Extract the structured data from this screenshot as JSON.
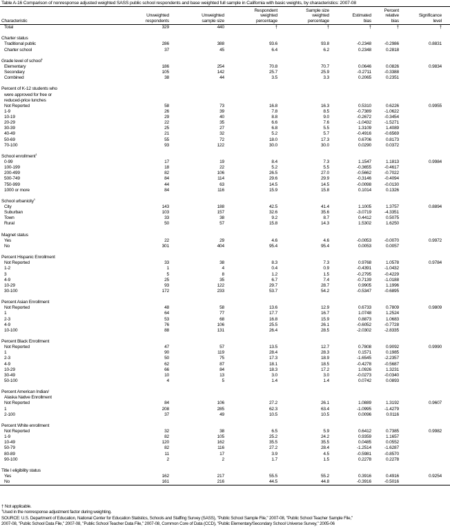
{
  "title": "Table A-16 Comparison of nonresponse adjusted weighted SASS public school respondents and base weighted full sample in California with basic weights, by characteristics: 2007-08",
  "headers": [
    "Characteristic",
    "Unweighted\nrespondents",
    "Unweighted\nsample size",
    "Respondent\nweighted\npercentage",
    "Sample size\nweighted\npercentage",
    "Estimated\nbias",
    "Percent\nrelative\nbias",
    "Significance\nlevel"
  ],
  "total": [
    "Total",
    "329",
    "440",
    "†",
    "†",
    "†",
    "†",
    "†"
  ],
  "sections": [
    {
      "label": "Charter status",
      "sup": "",
      "rows": [
        [
          "Traditional public",
          "286",
          "388",
          "93.6",
          "93.8",
          "-0.2348",
          "-0.2986",
          "0.8831"
        ],
        [
          "Charter school",
          "37",
          "45",
          "6.4",
          "6.2",
          "0.2348",
          "0.2818",
          ""
        ]
      ]
    },
    {
      "label": "Grade level of school",
      "sup": "1",
      "rows": [
        [
          "Elementary",
          "186",
          "254",
          "70.8",
          "70.7",
          "0.0646",
          "0.0826",
          "0.9834"
        ],
        [
          "Secondary",
          "105",
          "142",
          "25.7",
          "25.9",
          "-0.2711",
          "-0.3388",
          ""
        ],
        [
          "Combined",
          "38",
          "44",
          "3.5",
          "3.3",
          "0.2065",
          "0.2351",
          ""
        ]
      ]
    },
    {
      "label": "Percent of K-12 students who",
      "label_lines": [
        "were approved for free or",
        "reduced-price lunches"
      ],
      "sup": "",
      "rows": [
        [
          "Not Reported",
          "58",
          "73",
          "16.8",
          "16.3",
          "0.5310",
          "0.6226",
          "0.9955"
        ],
        [
          "1-9",
          "26",
          "39",
          "7.8",
          "8.5",
          "-0.7389",
          "-1.0622",
          ""
        ],
        [
          "10-19",
          "29",
          "40",
          "8.8",
          "9.0",
          "-0.2672",
          "-0.3454",
          ""
        ],
        [
          "20-29",
          "22",
          "35",
          "6.6",
          "7.6",
          "-1.0432",
          "-1.5271",
          ""
        ],
        [
          "30-39",
          "25",
          "27",
          "6.8",
          "5.5",
          "1.3109",
          "1.4089",
          ""
        ],
        [
          "40-49",
          "21",
          "32",
          "5.2",
          "5.7",
          "-0.4916",
          "-0.6569",
          ""
        ],
        [
          "50-69",
          "55",
          "72",
          "18.0",
          "17.3",
          "0.6706",
          "0.8173",
          ""
        ],
        [
          "70-100",
          "93",
          "122",
          "30.0",
          "30.0",
          "0.0290",
          "0.0372",
          ""
        ]
      ]
    },
    {
      "label": "School enrollment",
      "sup": "1",
      "rows": [
        [
          "0-99",
          "17",
          "19",
          "8.4",
          "7.3",
          "1.1547",
          "1.1813",
          "0.9984"
        ],
        [
          "100-199",
          "18",
          "22",
          "5.2",
          "5.5",
          "-0.3655",
          "-0.4617",
          ""
        ],
        [
          "200-499",
          "82",
          "106",
          "26.5",
          "27.0",
          "-0.5662",
          "-0.7022",
          ""
        ],
        [
          "500-749",
          "84",
          "114",
          "29.6",
          "29.9",
          "-0.3146",
          "-0.4094",
          ""
        ],
        [
          "750-999",
          "44",
          "63",
          "14.5",
          "14.5",
          "-0.0098",
          "-0.0130",
          ""
        ],
        [
          "1000 or more",
          "84",
          "116",
          "15.9",
          "15.8",
          "0.1014",
          "0.1326",
          ""
        ]
      ]
    },
    {
      "label": "School urbanicity",
      "sup": "1",
      "rows": [
        [
          "City",
          "143",
          "188",
          "42.5",
          "41.4",
          "1.1005",
          "1.3757",
          "0.8894"
        ],
        [
          "Suburban",
          "103",
          "157",
          "32.6",
          "35.6",
          "-3.0719",
          "-4.3351",
          ""
        ],
        [
          "Town",
          "33",
          "38",
          "9.2",
          "8.7",
          "0.4412",
          "0.5075",
          ""
        ],
        [
          "Rural",
          "50",
          "57",
          "15.8",
          "14.3",
          "1.5302",
          "1.6250",
          ""
        ]
      ]
    },
    {
      "label": "Magnet status",
      "sup": "",
      "rows": [
        [
          "Yes",
          "22",
          "29",
          "4.6",
          "4.6",
          "-0.0053",
          "-0.0070",
          "0.9972"
        ],
        [
          "No",
          "301",
          "404",
          "95.4",
          "95.4",
          "0.0053",
          "0.0057",
          ""
        ]
      ]
    },
    {
      "label": "Percent Hispanic Enrollment",
      "sup": "",
      "rows": [
        [
          "Not Reported",
          "33",
          "38",
          "8.3",
          "7.3",
          "0.9768",
          "1.0578",
          "0.9784"
        ],
        [
          "1-2",
          "1",
          "4",
          "0.4",
          "0.9",
          "-0.4391",
          "-1.0432",
          ""
        ],
        [
          "3",
          "5",
          "8",
          "1.2",
          "1.5",
          "-0.2795",
          "-0.4229",
          ""
        ],
        [
          "4-9",
          "25",
          "35",
          "6.7",
          "7.4",
          "-0.7139",
          "-1.0188",
          ""
        ],
        [
          "10-29",
          "93",
          "122",
          "29.7",
          "28.7",
          "0.9905",
          "1.1996",
          ""
        ],
        [
          "30-100",
          "172",
          "233",
          "53.7",
          "54.2",
          "-0.5347",
          "-0.6895",
          ""
        ]
      ]
    },
    {
      "label": "Percent Asian Enrollment",
      "sup": "",
      "rows": [
        [
          "Not Reported",
          "48",
          "58",
          "13.6",
          "12.9",
          "0.6733",
          "0.7809",
          "0.9809"
        ],
        [
          "1",
          "64",
          "77",
          "17.7",
          "16.7",
          "1.0748",
          "1.2524",
          ""
        ],
        [
          "2-3",
          "53",
          "68",
          "16.8",
          "15.9",
          "0.8873",
          "1.0683",
          ""
        ],
        [
          "4-9",
          "76",
          "106",
          "25.5",
          "26.1",
          "-0.6052",
          "-0.7728",
          ""
        ],
        [
          "10-100",
          "88",
          "131",
          "26.4",
          "28.5",
          "-2.0302",
          "-2.8335",
          ""
        ]
      ]
    },
    {
      "label": "Percent Black Enrollment",
      "sup": "",
      "rows": [
        [
          "Not Reported",
          "47",
          "57",
          "13.5",
          "12.7",
          "0.7808",
          "0.9092",
          "0.9990"
        ],
        [
          "1",
          "90",
          "119",
          "28.4",
          "28.3",
          "0.1571",
          "0.1985",
          ""
        ],
        [
          "2-3",
          "50",
          "75",
          "17.3",
          "18.9",
          "-1.6545",
          "-2.2357",
          ""
        ],
        [
          "4-9",
          "62",
          "87",
          "18.1",
          "18.5",
          "-0.4278",
          "-0.5687",
          ""
        ],
        [
          "10-29",
          "66",
          "84",
          "18.3",
          "17.2",
          "1.0926",
          "1.3231",
          ""
        ],
        [
          "30-49",
          "10",
          "13",
          "3.0",
          "3.0",
          "-0.0273",
          "-0.0340",
          ""
        ],
        [
          "50-100",
          "4",
          "5",
          "1.4",
          "1.4",
          "0.0742",
          "0.0893",
          ""
        ]
      ]
    },
    {
      "label": "Percent American Indian/",
      "label_lines": [
        "Alaska Native Enrollment"
      ],
      "sup": "",
      "rows": [
        [
          "Not Reported",
          "84",
          "106",
          "27.2",
          "26.1",
          "1.0889",
          "1.3192",
          "0.9607"
        ],
        [
          "1",
          "208",
          "285",
          "62.3",
          "63.4",
          "-1.0995",
          "-1.4279",
          ""
        ],
        [
          "2-100",
          "37",
          "49",
          "10.5",
          "10.5",
          "0.0096",
          "0.0116",
          ""
        ]
      ]
    },
    {
      "label": "Percent White enrollment",
      "sup": "",
      "rows": [
        [
          "Not Reported",
          "32",
          "38",
          "6.5",
          "5.9",
          "0.6412",
          "0.7385",
          "0.9982"
        ],
        [
          "1-9",
          "82",
          "105",
          "25.2",
          "24.2",
          "0.9359",
          "1.1657",
          ""
        ],
        [
          "10-49",
          "120",
          "162",
          "35.5",
          "35.5",
          "0.0485",
          "0.0552",
          ""
        ],
        [
          "50-79",
          "82",
          "116",
          "27.2",
          "28.4",
          "-1.2514",
          "-1.6287",
          ""
        ],
        [
          "80-89",
          "11",
          "17",
          "3.9",
          "4.5",
          "-0.5981",
          "-0.8570",
          ""
        ],
        [
          "90-100",
          "2",
          "2",
          "1.7",
          "1.5",
          "0.2278",
          "0.2278",
          ""
        ]
      ]
    },
    {
      "label": "Title I eligibility status",
      "sup": "",
      "rows": [
        [
          "Yes",
          "162",
          "217",
          "55.5",
          "55.2",
          "0.3916",
          "0.4916",
          "0.9254"
        ],
        [
          "No",
          "161",
          "216",
          "44.5",
          "44.8",
          "-0.3916",
          "-0.5016",
          ""
        ]
      ]
    }
  ],
  "notes": {
    "na": "† Not applicable.",
    "fn1_mark": "1",
    "fn1": "Used in the nonresponse adjustment factor during weighting.",
    "source1": "SOURCE: U.S. Department of Education, National Center for Education Statistics, Schools and Staffing Survey (SASS), \"Public School Sample File,\" 2007-08, \"Public School Teacher Sample File,\"",
    "source2": "2007-08, \"Public School Data File,\" 2007-08, \"Public School Teacher Data File,\" 2007-08, Common Core of Data (CCD), \"Public Elementary/Secondary School Universe Survey,\" 2005-06"
  }
}
